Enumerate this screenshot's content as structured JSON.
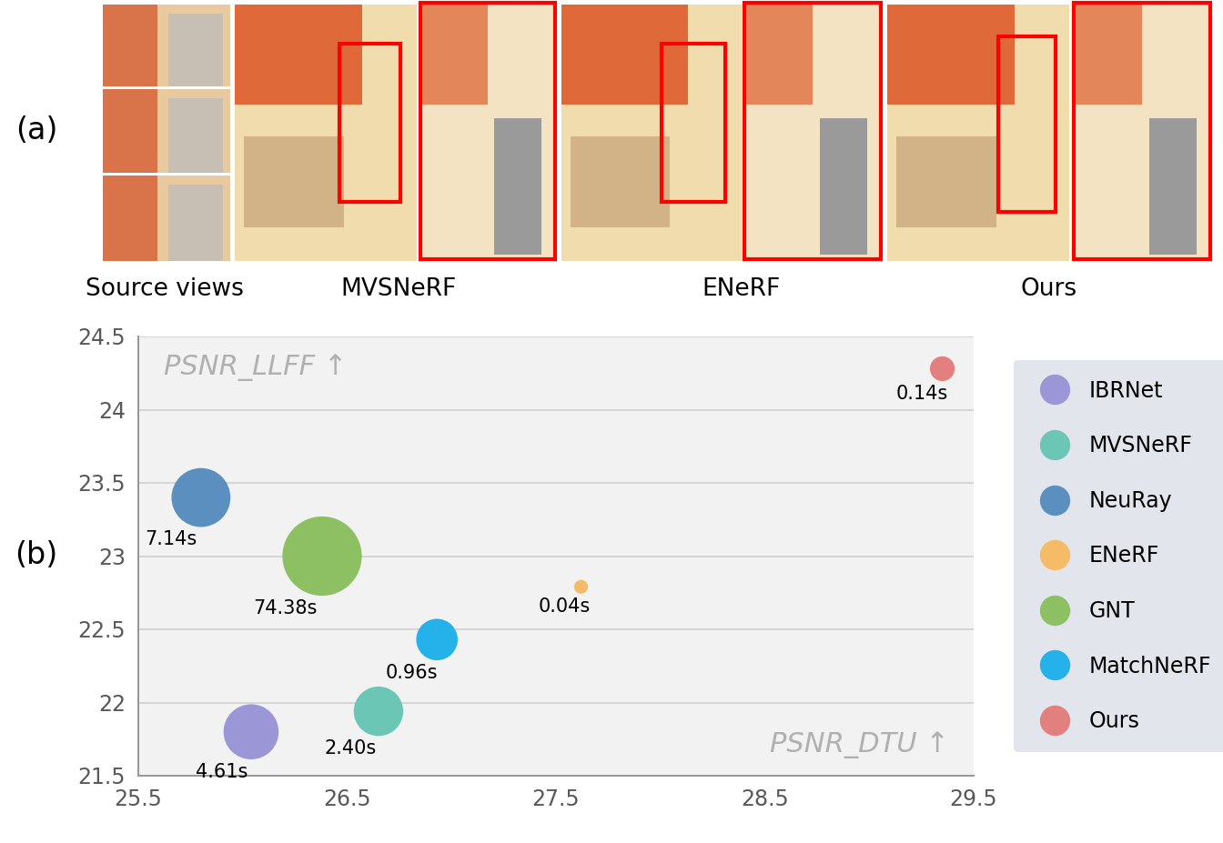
{
  "panel_a": {
    "label": "(a)",
    "captions": [
      "Source views",
      "MVSNeRF",
      "ENeRF",
      "Ours"
    ]
  },
  "panel_b_label": "(b)",
  "chart_data": {
    "type": "scatter",
    "x_label": "PSNR_DTU ↑",
    "y_label": "PSNR_LLFF ↑",
    "series": [
      {
        "name": "IBRNet",
        "color": "#9b97d6",
        "x": 26.04,
        "y": 21.8,
        "time": 4.61,
        "time_label": "4.61s"
      },
      {
        "name": "MVSNeRF",
        "color": "#6cc6b6",
        "x": 26.65,
        "y": 21.94,
        "time": 2.4,
        "time_label": "2.40s"
      },
      {
        "name": "NeuRay",
        "color": "#5b8fc0",
        "x": 25.8,
        "y": 23.4,
        "time": 7.14,
        "time_label": "7.14s"
      },
      {
        "name": "ENeRF",
        "color": "#f5bb66",
        "x": 27.62,
        "y": 22.79,
        "time": 0.04,
        "time_label": "0.04s"
      },
      {
        "name": "GNT",
        "color": "#8cc063",
        "x": 26.38,
        "y": 23.0,
        "time": 74.38,
        "time_label": "74.38s"
      },
      {
        "name": "MatchNeRF",
        "color": "#25b2ea",
        "x": 26.93,
        "y": 22.43,
        "time": 0.96,
        "time_label": "0.96s"
      },
      {
        "name": "Ours",
        "color": "#e27f7f",
        "x": 29.35,
        "y": 24.28,
        "time": 0.14,
        "time_label": "0.14s"
      }
    ],
    "xlim": [
      25.5,
      29.5
    ],
    "xticks": [
      25.5,
      26.5,
      27.5,
      28.5,
      29.5
    ],
    "ylim": [
      21.5,
      24.5
    ],
    "yticks": [
      21.5,
      22,
      22.5,
      23,
      23.5,
      24,
      24.5
    ],
    "grid": true,
    "legend": "center left"
  }
}
